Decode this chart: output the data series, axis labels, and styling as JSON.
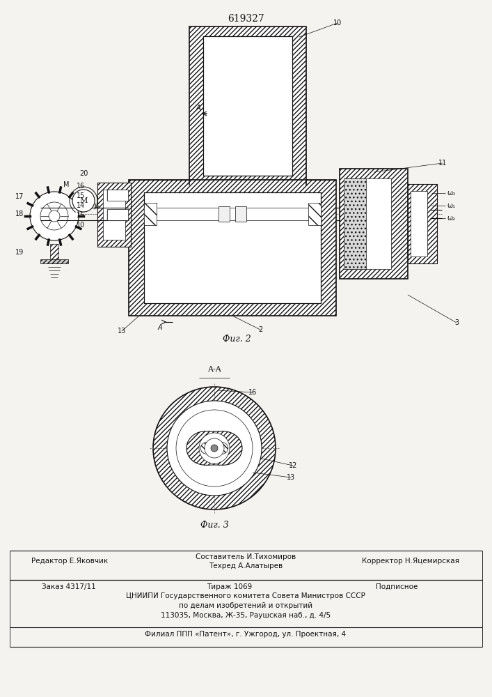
{
  "patent_number": "619327",
  "bg_color": "#f5f3f0",
  "fig_width": 7.07,
  "fig_height": 10.0,
  "dpi": 100,
  "footer": {
    "editor": "Редактор Е.Яковчик",
    "composer": "Составитель И.Тихомиров",
    "techred": "Техред А.Алатырев",
    "corrector": "Корректор Н.Яцемирская",
    "order": "Заказ 4317/11",
    "tirazh": "Тираж 1069",
    "podpisnoe": "Подписное",
    "org_line": "ЦНИИПИ Государственного комитета Совета Министров СССР",
    "affairs": "по делам изобретений и открытий",
    "address": "113035, Москва, Ж-35, Раушская наб., д. 4/5",
    "filial": "Филиал ППП «Патент», г. Ужгород, ул. Проектная, 4"
  },
  "fig2_caption": "Фиг. 2",
  "fig3_caption": "Фиг. 3",
  "fig3_label": "A-A"
}
